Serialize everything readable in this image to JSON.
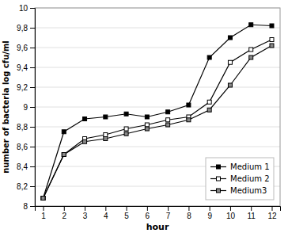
{
  "chart_data": {
    "type": "line",
    "x": [
      1,
      2,
      3,
      4,
      5,
      6,
      7,
      8,
      9,
      10,
      11,
      12
    ],
    "color": "#000000",
    "series": [
      {
        "name": "Medium 1",
        "color": "#000000",
        "marker": "square",
        "values": [
          8.08,
          8.75,
          8.88,
          8.9,
          8.93,
          8.9,
          8.95,
          9.02,
          9.5,
          9.7,
          9.83,
          9.82
        ]
      },
      {
        "name": "Medium 2",
        "color": "#ffffff",
        "marker": "square",
        "values": [
          8.08,
          8.52,
          8.68,
          8.72,
          8.78,
          8.82,
          8.87,
          8.9,
          9.05,
          9.45,
          9.58,
          9.68
        ]
      },
      {
        "name": "Medium3",
        "color": "#888888",
        "marker": "square",
        "values": [
          8.08,
          8.52,
          8.65,
          8.68,
          8.73,
          8.78,
          8.82,
          8.87,
          8.97,
          9.22,
          9.5,
          9.62
        ]
      }
    ],
    "xlabel": "hour",
    "ylabel": "number of bacteria log cfu/ml",
    "xlim": [
      0.6,
      12.4
    ],
    "ylim": [
      8.0,
      10.0
    ],
    "xticks": [
      1,
      2,
      3,
      4,
      5,
      6,
      7,
      8,
      9,
      10,
      11,
      12
    ],
    "yticks": [
      8,
      {
        "value": 8.2,
        "label": "8,2"
      },
      {
        "value": 8.4,
        "label": "8,4"
      },
      {
        "value": 8.6,
        "label": "8,6"
      },
      {
        "value": 8.8,
        "label": "8,8"
      },
      {
        "value": 9,
        "label": "9"
      },
      {
        "value": 9.2,
        "label": "9,2"
      },
      {
        "value": 9.4,
        "label": "9,4"
      },
      {
        "value": 9.6,
        "label": "9,6"
      },
      {
        "value": 9.8,
        "label": "9,8"
      },
      10
    ],
    "grid": true,
    "legend": "lower right"
  }
}
